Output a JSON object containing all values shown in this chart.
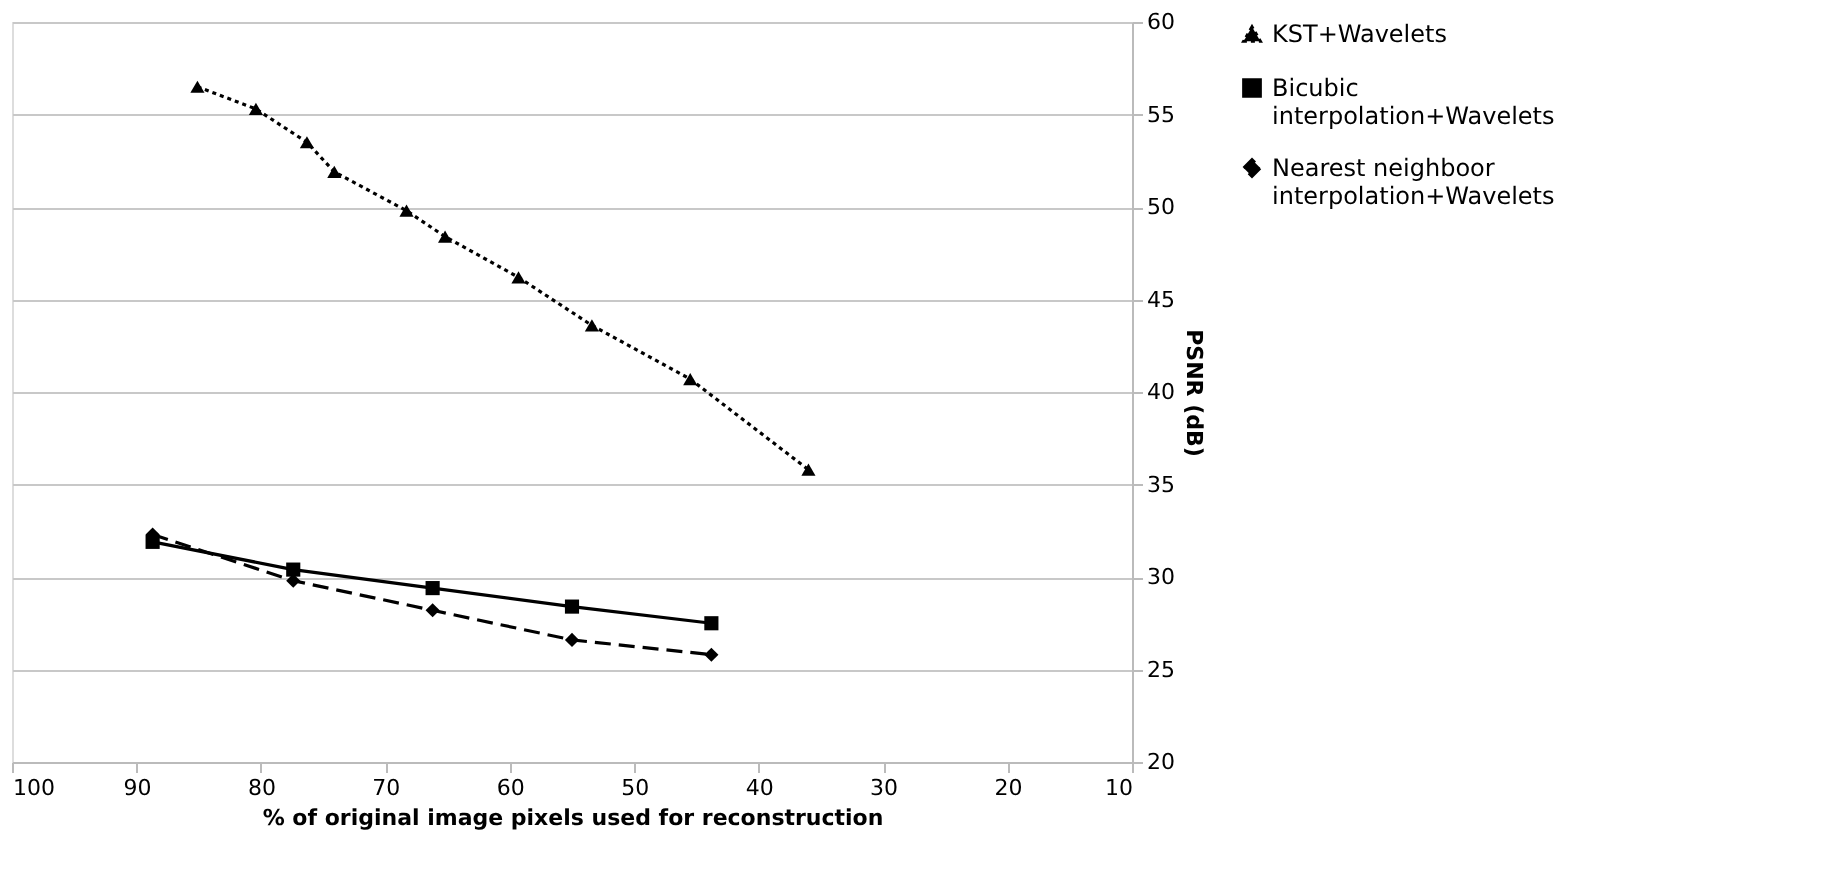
{
  "chart_data": {
    "type": "line",
    "xlabel": "% of original image pixels used for reconstruction",
    "ylabel": "PSNR (dB)",
    "xlim": [
      100,
      10
    ],
    "xticks": [
      100,
      90,
      80,
      70,
      60,
      50,
      40,
      30,
      20,
      10
    ],
    "ylim": [
      20,
      60
    ],
    "yticks": [
      20,
      25,
      30,
      35,
      40,
      45,
      50,
      55,
      60
    ],
    "grid": "y",
    "legend": "right",
    "series": [
      {
        "name": "KST+Wavelets",
        "color": "#000000",
        "marker": "triangle",
        "line_style": "dotted",
        "x": [
          85.1,
          80.4,
          76.3,
          74.1,
          68.3,
          65.2,
          59.3,
          53.4,
          45.5,
          36.0
        ],
        "values": [
          56.5,
          55.3,
          53.5,
          51.9,
          49.8,
          48.4,
          46.2,
          43.6,
          40.7,
          35.8
        ]
      },
      {
        "name": "Bicubic interpolation+Wavelets",
        "color": "#000000",
        "marker": "square",
        "line_style": "solid",
        "x": [
          88.7,
          77.4,
          66.2,
          55.0,
          43.8
        ],
        "values": [
          31.9,
          30.4,
          29.4,
          28.4,
          27.5
        ]
      },
      {
        "name": "Nearest neighboor interpolation+Wavelets",
        "color": "#000000",
        "marker": "diamond",
        "line_style": "dashed",
        "x": [
          88.7,
          77.4,
          66.2,
          55.0,
          43.8
        ],
        "values": [
          32.3,
          29.8,
          28.2,
          26.6,
          25.8
        ]
      }
    ]
  }
}
